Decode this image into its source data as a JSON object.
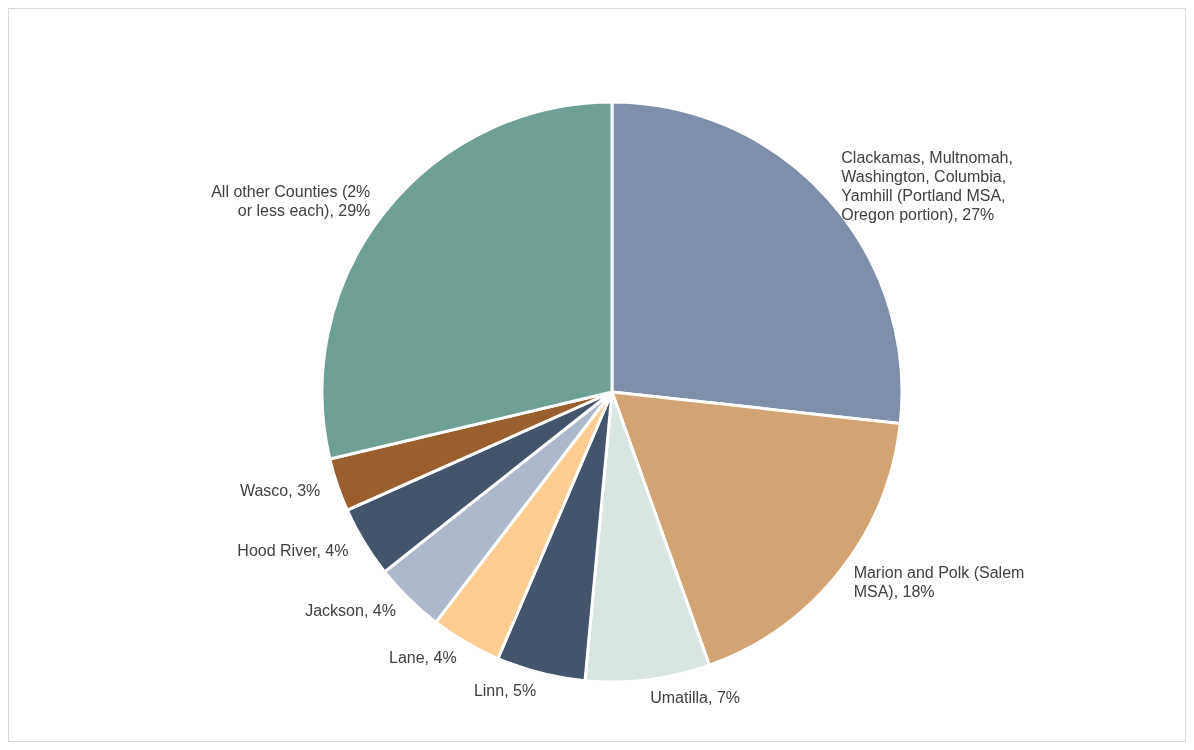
{
  "chart_data": {
    "type": "pie",
    "categories": [
      "Clackamas, Multnomah, Washington, Columbia, Yamhill (Portland MSA, Oregon portion)",
      "Marion and Polk (Salem MSA)",
      "Umatilla",
      "Linn",
      "Lane",
      "Jackson",
      "Hood River",
      "Wasco",
      "All other Counties (2% or less each)"
    ],
    "values": [
      27,
      18,
      7,
      5,
      4,
      4,
      4,
      3,
      29
    ],
    "value_labels": [
      "27%",
      "18%",
      "7%",
      "5%",
      "4%",
      "4%",
      "4%",
      "3%",
      "29%"
    ],
    "colors": [
      "#7f8fa9",
      "#d4a373",
      "#d9e5e3",
      "#44546a",
      "#ffcc91",
      "#adb9ca",
      "#44546a",
      "#9a5e2f",
      "#6fa095"
    ]
  }
}
